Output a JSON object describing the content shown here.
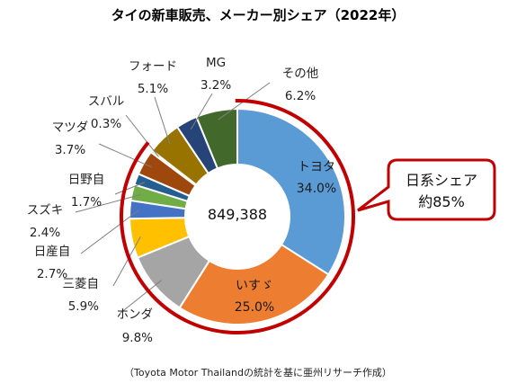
{
  "chart_data": {
    "type": "pie",
    "title": "タイの新車販売、メーカー別シェア（2022年）",
    "total_label": "849,388",
    "slices": [
      {
        "name": "トヨタ",
        "value": 34.0,
        "label": "34.0%",
        "color": "#5B9BD5"
      },
      {
        "name": "いすゞ",
        "value": 25.0,
        "label": "25.0%",
        "color": "#ED7D31"
      },
      {
        "name": "ホンダ",
        "value": 9.8,
        "label": "9.8%",
        "color": "#A5A5A5"
      },
      {
        "name": "三菱自",
        "value": 5.9,
        "label": "5.9%",
        "color": "#FFC000"
      },
      {
        "name": "日産自",
        "value": 2.7,
        "label": "2.7%",
        "color": "#4472C4"
      },
      {
        "name": "スズキ",
        "value": 2.4,
        "label": "2.4%",
        "color": "#70AD47"
      },
      {
        "name": "日野自",
        "value": 1.7,
        "label": "1.7%",
        "color": "#255E91"
      },
      {
        "name": "マツダ",
        "value": 3.7,
        "label": "3.7%",
        "color": "#9E480E"
      },
      {
        "name": "スバル",
        "value": 0.3,
        "label": "0.3%",
        "color": "#636363"
      },
      {
        "name": "フォード",
        "value": 5.1,
        "label": "5.1%",
        "color": "#997300"
      },
      {
        "name": "MG",
        "value": 3.2,
        "label": "3.2%",
        "color": "#264478"
      },
      {
        "name": "その他",
        "value": 6.2,
        "label": "6.2%",
        "color": "#43682B"
      }
    ],
    "highlight": {
      "text_line1": "日系シェア",
      "text_line2": "約85%",
      "color": "#C00000"
    },
    "source": "（Toyota Motor Thailandの統計を基に亜州リサーチ作成）"
  }
}
